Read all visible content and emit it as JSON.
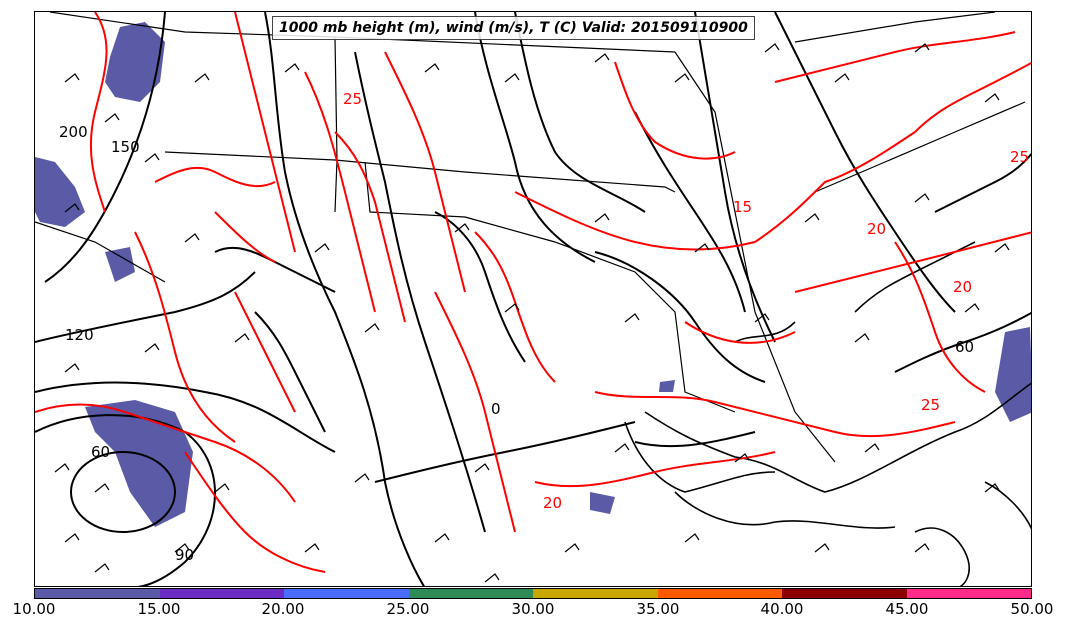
{
  "title": "1000 mb height (m), wind (m/s), T (C) Valid: 201509110900",
  "colorbar": {
    "colors": [
      "#5a5aa6",
      "#6a2cc2",
      "#4a6cff",
      "#2e8b57",
      "#c8a800",
      "#ff5a00",
      "#8b0000",
      "#ff2a8a"
    ],
    "ticks": [
      "10.00",
      "15.00",
      "20.00",
      "25.00",
      "30.00",
      "35.00",
      "40.00",
      "45.00",
      "50.00"
    ]
  },
  "contour_labels": {
    "height": [
      "150",
      "200",
      "120",
      "60",
      "90",
      "60",
      "0"
    ],
    "temperature": [
      "25",
      "15",
      "20",
      "20",
      "25",
      "25",
      "20"
    ]
  },
  "colors": {
    "height_contour": "#000000",
    "temperature_contour": "#ff0000",
    "wind_shading": "#5a5aa6"
  }
}
